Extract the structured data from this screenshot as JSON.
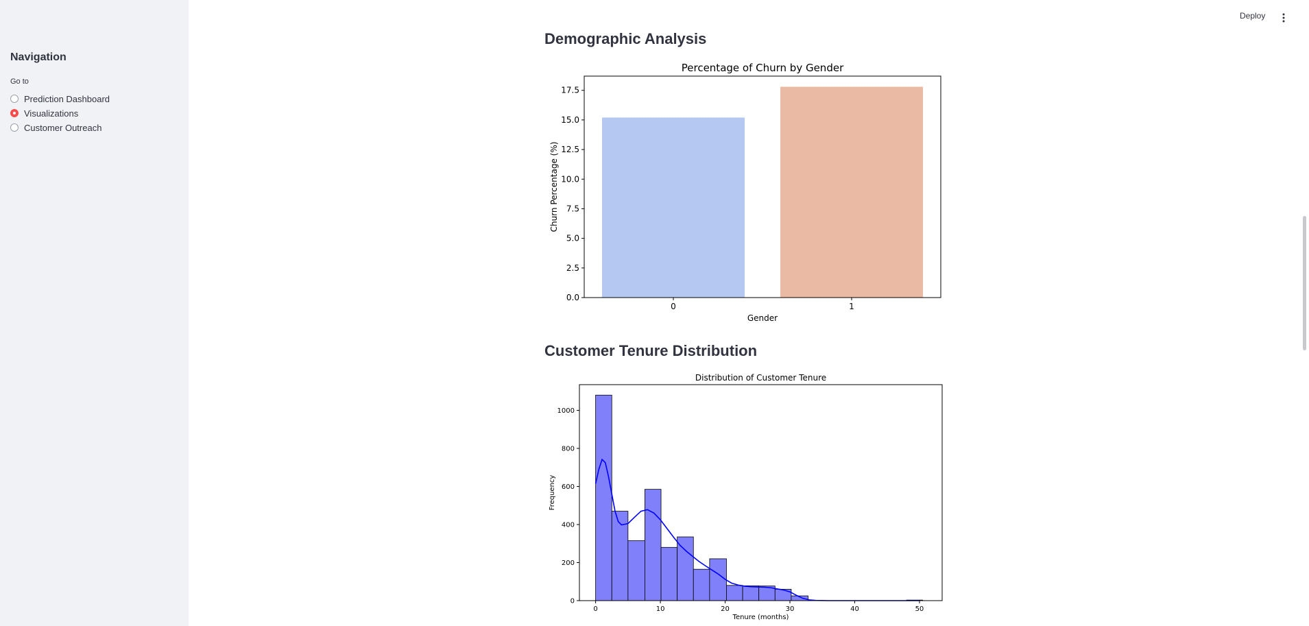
{
  "sidebar": {
    "title": "Navigation",
    "group_label": "Go to",
    "items": [
      {
        "label": "Prediction Dashboard",
        "checked": false
      },
      {
        "label": "Visualizations",
        "checked": true
      },
      {
        "label": "Customer Outreach",
        "checked": false
      }
    ]
  },
  "header": {
    "deploy_label": "Deploy",
    "menu_icon": "vertical-ellipsis-icon"
  },
  "colors": {
    "accent": "#ff4b4b",
    "bar_gender_0": "#b4c8f2",
    "bar_gender_1": "#ebbaa4",
    "hist_fill": "#8080fa",
    "kde_line": "#0000ff"
  },
  "sections": {
    "demographic_heading": "Demographic Analysis",
    "tenure_heading": "Customer Tenure Distribution"
  },
  "chart_data": [
    {
      "type": "bar",
      "title": "Percentage of Churn by Gender",
      "xlabel": "Gender",
      "ylabel": "Churn Percentage (%)",
      "categories": [
        "0",
        "1"
      ],
      "values": [
        15.2,
        17.8
      ],
      "ylim": [
        0,
        18.7
      ],
      "yticks": [
        0.0,
        2.5,
        5.0,
        7.5,
        10.0,
        12.5,
        15.0,
        17.5
      ],
      "ytick_labels": [
        "0.0",
        "2.5",
        "5.0",
        "7.5",
        "10.0",
        "12.5",
        "15.0",
        "17.5"
      ],
      "grid": false,
      "legend": "none"
    },
    {
      "type": "bar",
      "subtype": "histogram",
      "title": "Distribution of Customer Tenure",
      "xlabel": "Tenure (months)",
      "ylabel": "Frequency",
      "xlim": [
        -2.5,
        53.5
      ],
      "ylim": [
        0,
        1135
      ],
      "xticks": [
        0,
        10,
        20,
        30,
        40,
        50
      ],
      "yticks": [
        0,
        200,
        400,
        600,
        800,
        1000
      ],
      "bins": [
        {
          "start": 0.0,
          "end": 2.5,
          "count": 1080
        },
        {
          "start": 2.5,
          "end": 5.0,
          "count": 470
        },
        {
          "start": 5.0,
          "end": 7.6,
          "count": 315
        },
        {
          "start": 7.6,
          "end": 10.1,
          "count": 585
        },
        {
          "start": 10.1,
          "end": 12.6,
          "count": 280
        },
        {
          "start": 12.6,
          "end": 15.1,
          "count": 335
        },
        {
          "start": 15.1,
          "end": 17.6,
          "count": 165
        },
        {
          "start": 17.6,
          "end": 20.2,
          "count": 220
        },
        {
          "start": 20.2,
          "end": 22.7,
          "count": 80
        },
        {
          "start": 22.7,
          "end": 25.2,
          "count": 78
        },
        {
          "start": 25.2,
          "end": 27.7,
          "count": 77
        },
        {
          "start": 27.7,
          "end": 30.2,
          "count": 60
        },
        {
          "start": 30.2,
          "end": 32.8,
          "count": 25
        },
        {
          "start": 48.0,
          "end": 50.5,
          "count": 3
        }
      ],
      "kde": {
        "x": [
          0,
          0.5,
          1,
          1.5,
          2,
          2.5,
          3,
          3.5,
          4,
          5,
          6,
          7,
          8,
          9,
          10,
          11,
          12,
          13,
          14,
          15,
          16,
          17,
          18,
          19,
          20,
          21,
          22,
          23,
          24,
          25,
          26,
          27,
          28,
          29,
          30,
          31,
          32,
          33,
          34,
          36,
          40,
          45,
          50
        ],
        "y": [
          615,
          690,
          742,
          725,
          650,
          560,
          470,
          415,
          398,
          405,
          438,
          470,
          478,
          460,
          425,
          380,
          335,
          292,
          260,
          232,
          205,
          182,
          160,
          138,
          112,
          92,
          82,
          76,
          73,
          72,
          71,
          68,
          62,
          56,
          46,
          28,
          12,
          4,
          1,
          0,
          0,
          0,
          0
        ]
      },
      "grid": false,
      "legend": "none"
    }
  ]
}
